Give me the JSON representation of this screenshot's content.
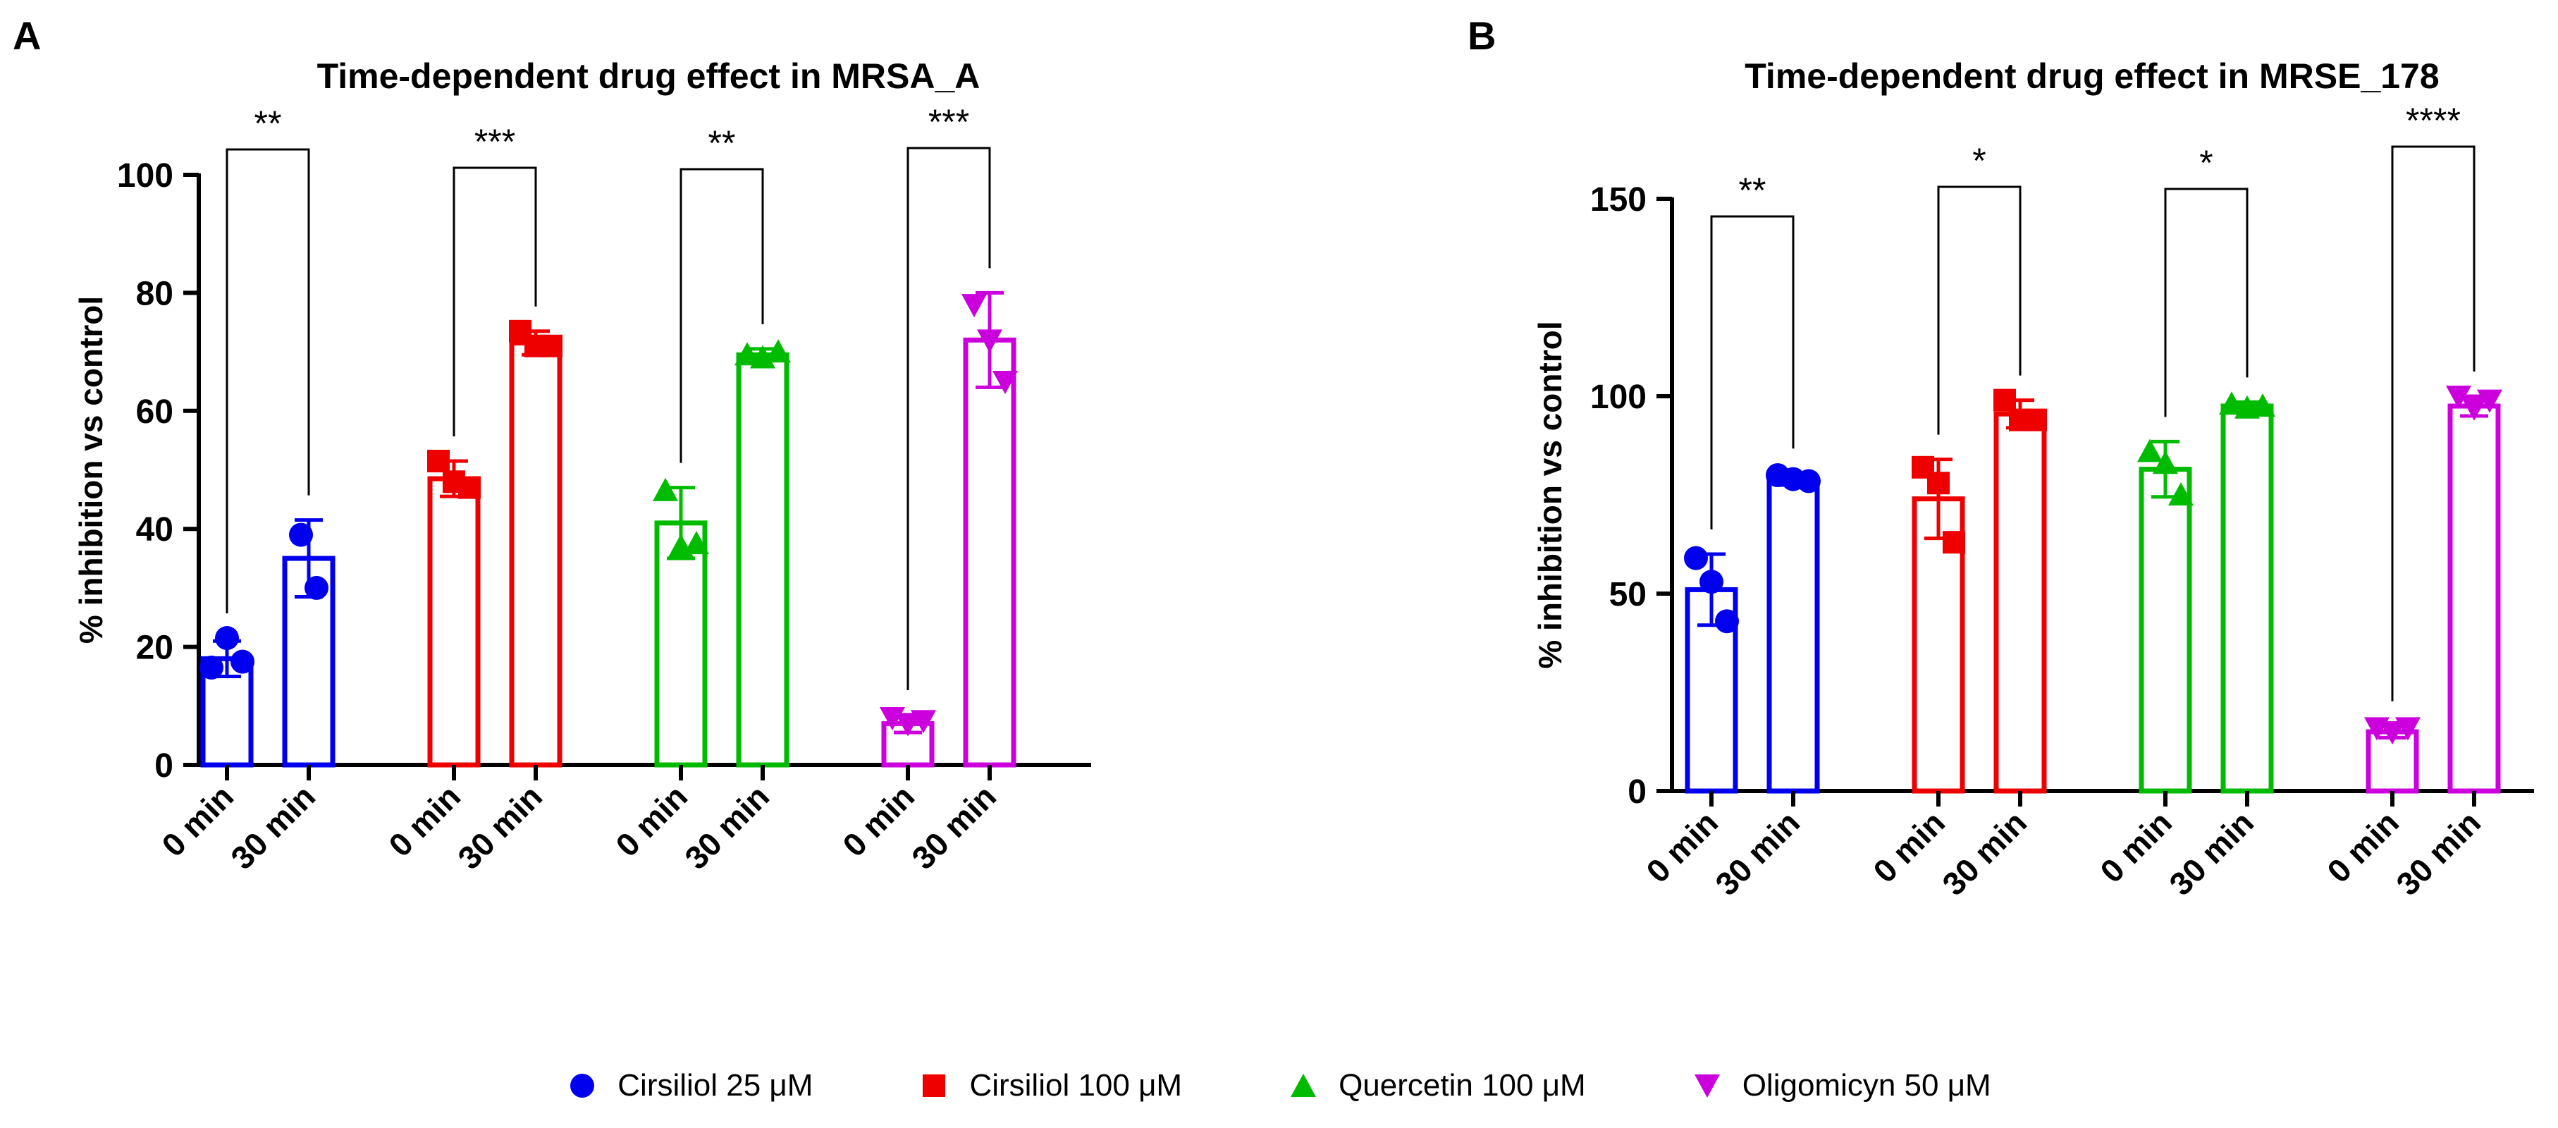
{
  "legend": [
    {
      "label": "Cirsiliol 25 μM",
      "marker": "circle",
      "color": "#0000ee"
    },
    {
      "label": "Cirsiliol 100 μM",
      "marker": "square",
      "color": "#ee0000"
    },
    {
      "label": "Quercetin 100 μM",
      "marker": "triangle-up",
      "color": "#00bb00"
    },
    {
      "label": "Oligomicyn 50 μM",
      "marker": "triangle-down",
      "color": "#cc00dd"
    }
  ],
  "chart_data": [
    {
      "type": "bar",
      "panel_label": "A",
      "title": "Time-dependent drug effect in MRSA_A",
      "ylabel": "% inhibition vs control",
      "xlabel": "",
      "ylim": [
        0,
        100
      ],
      "yticks": [
        0,
        20,
        40,
        60,
        80,
        100
      ],
      "categories": [
        "0 min",
        "30 min",
        "0 min",
        "30 min",
        "0 min",
        "30 min",
        "0 min",
        "30 min"
      ],
      "groups": [
        {
          "name": "Cirsiliol 25 μM",
          "color": "#0000ee",
          "marker": "circle",
          "bars": [
            {
              "label": "0 min",
              "mean": 18,
              "sd": 3,
              "points": [
                16.5,
                21.5,
                17.5
              ]
            },
            {
              "label": "30 min",
              "mean": 35,
              "sd": 6.5,
              "points": [
                39,
                30
              ]
            }
          ],
          "significance": "**"
        },
        {
          "name": "Cirsiliol 100 μM",
          "color": "#ee0000",
          "marker": "square",
          "bars": [
            {
              "label": "0 min",
              "mean": 48.5,
              "sd": 3,
              "points": [
                51.5,
                48,
                47
              ]
            },
            {
              "label": "30 min",
              "mean": 71.5,
              "sd": 2,
              "points": [
                73.5,
                71,
                71
              ]
            }
          ],
          "significance": "***"
        },
        {
          "name": "Quercetin 100 μM",
          "color": "#00bb00",
          "marker": "triangle-up",
          "bars": [
            {
              "label": "0 min",
              "mean": 41,
              "sd": 6,
              "points": [
                46.5,
                37,
                37.5
              ]
            },
            {
              "label": "30 min",
              "mean": 69.5,
              "sd": 1,
              "points": [
                69.5,
                69,
                70
              ]
            }
          ],
          "significance": "**"
        },
        {
          "name": "Oligomicyn 50 μM",
          "color": "#cc00dd",
          "marker": "triangle-down",
          "bars": [
            {
              "label": "0 min",
              "mean": 7,
              "sd": 1.5,
              "points": [
                8,
                7,
                7.5
              ]
            },
            {
              "label": "30 min",
              "mean": 72,
              "sd": 8,
              "points": [
                78,
                72,
                65
              ]
            }
          ],
          "significance": "***"
        }
      ]
    },
    {
      "type": "bar",
      "panel_label": "B",
      "title": "Time-dependent drug effect in MRSE_178",
      "ylabel": "% inhibition vs control",
      "xlabel": "",
      "ylim": [
        0,
        150
      ],
      "yticks": [
        0,
        50,
        100,
        150
      ],
      "categories": [
        "0 min",
        "30 min",
        "0 min",
        "30 min",
        "0 min",
        "30 min",
        "0 min",
        "30 min"
      ],
      "groups": [
        {
          "name": "Cirsiliol 25 μM",
          "color": "#0000ee",
          "marker": "circle",
          "bars": [
            {
              "label": "0 min",
              "mean": 51,
              "sd": 9,
              "points": [
                59,
                53,
                43
              ]
            },
            {
              "label": "30 min",
              "mean": 79,
              "sd": 1.5,
              "points": [
                80,
                79,
                78.5
              ]
            }
          ],
          "significance": "**"
        },
        {
          "name": "Cirsiliol 100 μM",
          "color": "#ee0000",
          "marker": "square",
          "bars": [
            {
              "label": "0 min",
              "mean": 74,
              "sd": 10,
              "points": [
                82,
                78,
                63
              ]
            },
            {
              "label": "30 min",
              "mean": 95.5,
              "sd": 3.5,
              "points": [
                99,
                94,
                94
              ]
            }
          ],
          "significance": "*"
        },
        {
          "name": "Quercetin 100 μM",
          "color": "#00bb00",
          "marker": "triangle-up",
          "bars": [
            {
              "label": "0 min",
              "mean": 81.5,
              "sd": 7,
              "points": [
                86,
                83,
                75
              ]
            },
            {
              "label": "30 min",
              "mean": 97.5,
              "sd": 1,
              "points": [
                98,
                97,
                97.5
              ]
            }
          ],
          "significance": "*"
        },
        {
          "name": "Oligomicyn 50 μM",
          "color": "#cc00dd",
          "marker": "triangle-down",
          "bars": [
            {
              "label": "0 min",
              "mean": 15,
              "sd": 1.5,
              "points": [
                16,
                15,
                16
              ]
            },
            {
              "label": "30 min",
              "mean": 97.5,
              "sd": 2.5,
              "points": [
                100,
                97,
                99
              ]
            }
          ],
          "significance": "****"
        }
      ]
    }
  ]
}
